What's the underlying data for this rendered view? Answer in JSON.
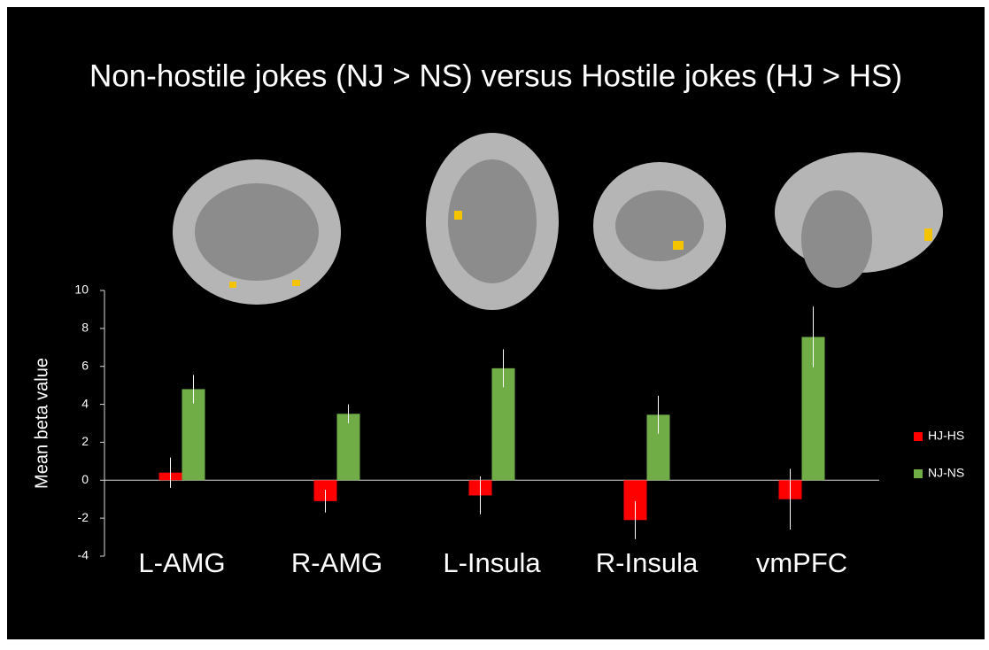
{
  "chart_data": {
    "type": "bar",
    "title": "Non-hostile jokes (NJ > NS) versus Hostile jokes (HJ > HS)",
    "y_label": "Mean beta value",
    "categories": [
      "L-AMG",
      "R-AMG",
      "L-Insula",
      "R-Insula",
      "vmPFC"
    ],
    "series": [
      {
        "name": "HJ-HS",
        "color": "#ff0000",
        "values": [
          0.4,
          -1.1,
          -0.8,
          -2.1,
          -1.0
        ],
        "errors": [
          0.8,
          0.6,
          1.0,
          1.0,
          1.6
        ]
      },
      {
        "name": "NJ-NS",
        "color": "#70ad47",
        "values": [
          4.8,
          3.5,
          5.9,
          3.45,
          7.55
        ],
        "errors": [
          0.75,
          0.5,
          1.0,
          1.0,
          1.6
        ]
      }
    ],
    "ylim": [
      -4,
      10
    ],
    "yticks": [
      -4,
      -2,
      0,
      2,
      4,
      6,
      8,
      10
    ],
    "legend": "right"
  }
}
